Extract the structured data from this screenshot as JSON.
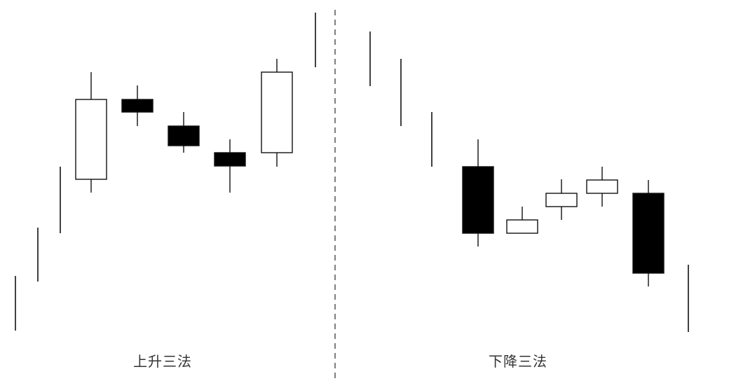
{
  "panels": [
    {
      "title": "上升三法",
      "candles": [
        {
          "kind": "line"
        },
        {
          "kind": "line"
        },
        {
          "kind": "line"
        },
        {
          "kind": "body",
          "color": "white"
        },
        {
          "kind": "body",
          "color": "black"
        },
        {
          "kind": "body",
          "color": "black"
        },
        {
          "kind": "body",
          "color": "black"
        },
        {
          "kind": "body",
          "color": "white"
        },
        {
          "kind": "line"
        }
      ]
    },
    {
      "title": "下降三法",
      "candles": [
        {
          "kind": "line"
        },
        {
          "kind": "line"
        },
        {
          "kind": "line"
        },
        {
          "kind": "body",
          "color": "black"
        },
        {
          "kind": "body",
          "color": "white"
        },
        {
          "kind": "body",
          "color": "white"
        },
        {
          "kind": "body",
          "color": "white"
        },
        {
          "kind": "body",
          "color": "black"
        },
        {
          "kind": "line"
        }
      ]
    }
  ],
  "colors": {
    "ink": "#111111",
    "bullish": "#ffffff",
    "bearish": "#000000",
    "divider": "#555555"
  }
}
